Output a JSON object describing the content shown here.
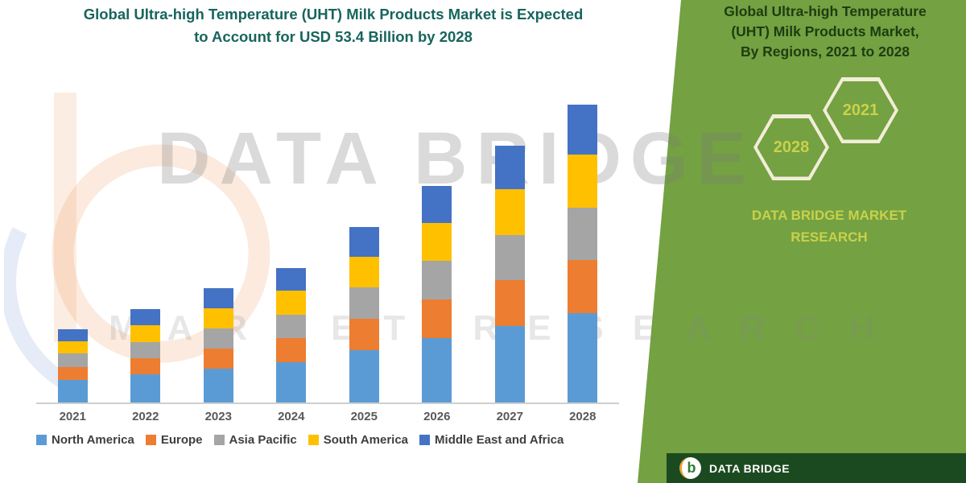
{
  "header": {
    "line1": "Global Ultra-high Temperature (UHT) Milk Products Market is Expected",
    "line2": "to Account for USD 53.4 Billion by 2028"
  },
  "chart_data": {
    "type": "bar",
    "stacked": true,
    "title": "Global Ultra-high Temperature (UHT) Milk Products Market is Expected to Account for USD 53.4 Billion by 2028",
    "categories": [
      "2021",
      "2022",
      "2023",
      "2024",
      "2025",
      "2026",
      "2027",
      "2028"
    ],
    "series": [
      {
        "name": "North America",
        "color": "#5B9BD5",
        "values": [
          4.0,
          5.0,
          6.1,
          7.2,
          9.4,
          11.6,
          13.7,
          16.0
        ]
      },
      {
        "name": "Europe",
        "color": "#ED7D31",
        "values": [
          2.4,
          2.9,
          3.6,
          4.3,
          5.6,
          6.9,
          8.2,
          9.5
        ]
      },
      {
        "name": "Asia Pacific",
        "color": "#A5A5A5",
        "values": [
          2.4,
          3.0,
          3.6,
          4.3,
          5.6,
          6.9,
          8.2,
          9.5
        ]
      },
      {
        "name": "South America",
        "color": "#FFC000",
        "values": [
          2.2,
          2.9,
          3.6,
          4.2,
          5.5,
          6.8,
          8.1,
          9.4
        ]
      },
      {
        "name": "Middle East and Africa",
        "color": "#4472C4",
        "values": [
          2.2,
          3.0,
          3.6,
          4.1,
          5.4,
          6.6,
          7.9,
          9.0
        ]
      }
    ],
    "xlabel": "",
    "ylabel": "",
    "ylim": [
      0,
      56
    ],
    "grid": false,
    "legend_position": "bottom",
    "value_note": "USD Billion, totals estimated from bar heights; 2028 total = 53.4"
  },
  "panel": {
    "heading_line1": "Global Ultra-high Temperature",
    "heading_line2": "(UHT) Milk Products Market,",
    "heading_line3": "By Regions, 2021 to 2028",
    "hex_front_year": "2028",
    "hex_back_year": "2021",
    "brand_line1": "DATA BRIDGE MARKET",
    "brand_line2": "RESEARCH"
  },
  "watermark": {
    "line1": "DATA BRIDGE",
    "line2": "MARKET RESEARCH"
  },
  "footer": {
    "logo_letter": "b",
    "brand": "DATA BRIDGE"
  },
  "appearance": {
    "colors": {
      "panel_green": "#74A142",
      "footer_green": "#1C4A20",
      "title_color": "#17655C",
      "heading_color": "#1E3D10",
      "hex_border": "#F2EDD8",
      "accent_yellow": "#C9D14B",
      "axis_label": "#595959",
      "legend_label": "#3F3F3F",
      "axis_line": "#CFCFCF"
    }
  }
}
